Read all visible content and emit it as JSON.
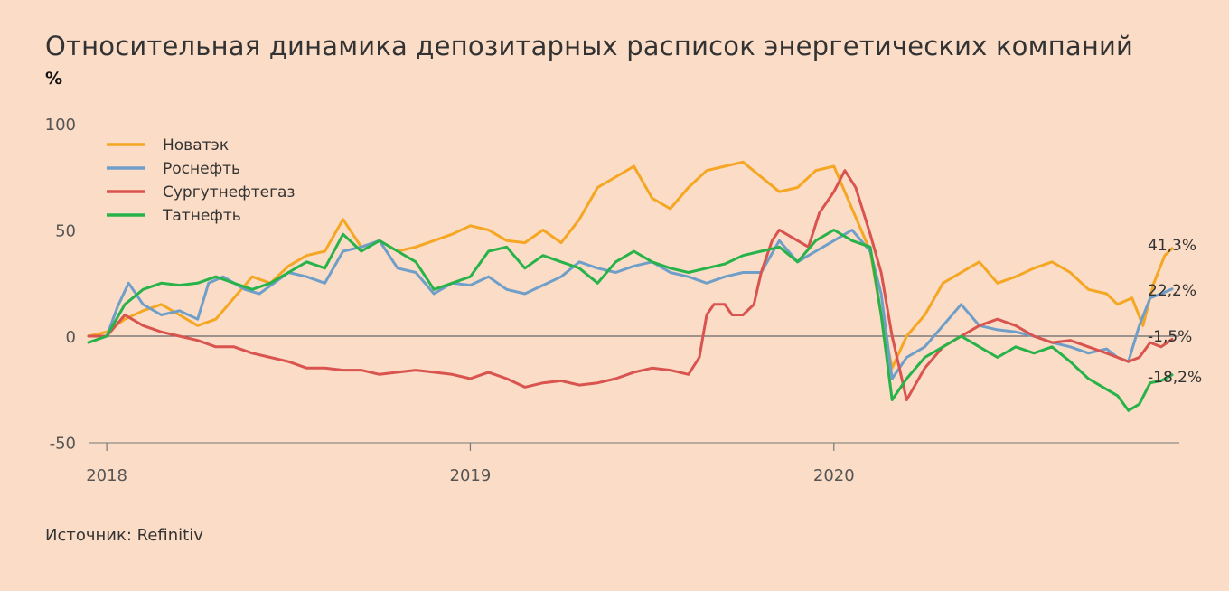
{
  "title": "Относительная динамика депозитарных расписок энергетических компаний",
  "unit": "%",
  "source": "Источник: Refinitiv",
  "chart_data": {
    "type": "line",
    "ylim": [
      -50,
      100
    ],
    "y_ticks": [
      100,
      50,
      0,
      -50
    ],
    "x_range": [
      2017.95,
      2020.95
    ],
    "x_ticks": [
      {
        "value": 2018.0,
        "label": "2018"
      },
      {
        "value": 2019.0,
        "label": "2019"
      },
      {
        "value": 2020.0,
        "label": "2020"
      }
    ],
    "legend_position": "top-left",
    "series": [
      {
        "name": "Новатэк",
        "color": "#f5a623",
        "end_label": "41,3%",
        "x": [
          2017.95,
          2018.0,
          2018.05,
          2018.1,
          2018.15,
          2018.2,
          2018.25,
          2018.3,
          2018.35,
          2018.4,
          2018.45,
          2018.5,
          2018.55,
          2018.6,
          2018.65,
          2018.7,
          2018.75,
          2018.8,
          2018.85,
          2018.9,
          2018.95,
          2019.0,
          2019.05,
          2019.1,
          2019.15,
          2019.2,
          2019.25,
          2019.3,
          2019.35,
          2019.4,
          2019.45,
          2019.5,
          2019.55,
          2019.6,
          2019.65,
          2019.7,
          2019.75,
          2019.8,
          2019.85,
          2019.9,
          2019.95,
          2020.0,
          2020.05,
          2020.1,
          2020.13,
          2020.16,
          2020.2,
          2020.25,
          2020.3,
          2020.35,
          2020.4,
          2020.45,
          2020.5,
          2020.55,
          2020.6,
          2020.65,
          2020.7,
          2020.75,
          2020.78,
          2020.82,
          2020.85,
          2020.88,
          2020.91,
          2020.93
        ],
        "y": [
          0,
          2,
          8,
          12,
          15,
          10,
          5,
          8,
          18,
          28,
          25,
          33,
          38,
          40,
          55,
          42,
          45,
          40,
          42,
          45,
          48,
          52,
          50,
          45,
          44,
          50,
          44,
          55,
          70,
          75,
          80,
          65,
          60,
          70,
          78,
          80,
          82,
          75,
          68,
          70,
          78,
          80,
          60,
          40,
          10,
          -15,
          0,
          10,
          25,
          30,
          35,
          25,
          28,
          32,
          35,
          30,
          22,
          20,
          15,
          18,
          5,
          25,
          38,
          41.3
        ]
      },
      {
        "name": "Роснефть",
        "color": "#6f9fc8",
        "end_label": "22,2%",
        "x": [
          2017.95,
          2018.0,
          2018.03,
          2018.06,
          2018.1,
          2018.15,
          2018.2,
          2018.25,
          2018.28,
          2018.32,
          2018.38,
          2018.42,
          2018.46,
          2018.5,
          2018.55,
          2018.6,
          2018.65,
          2018.7,
          2018.75,
          2018.8,
          2018.85,
          2018.9,
          2018.95,
          2019.0,
          2019.05,
          2019.1,
          2019.15,
          2019.2,
          2019.25,
          2019.3,
          2019.35,
          2019.4,
          2019.45,
          2019.5,
          2019.55,
          2019.6,
          2019.65,
          2019.7,
          2019.75,
          2019.8,
          2019.85,
          2019.9,
          2019.95,
          2020.0,
          2020.05,
          2020.1,
          2020.13,
          2020.16,
          2020.2,
          2020.25,
          2020.3,
          2020.35,
          2020.4,
          2020.45,
          2020.5,
          2020.55,
          2020.6,
          2020.65,
          2020.7,
          2020.75,
          2020.78,
          2020.81,
          2020.84,
          2020.87,
          2020.9,
          2020.93
        ],
        "y": [
          0,
          0,
          14,
          25,
          15,
          10,
          12,
          8,
          25,
          28,
          22,
          20,
          25,
          30,
          28,
          25,
          40,
          42,
          45,
          32,
          30,
          20,
          25,
          24,
          28,
          22,
          20,
          24,
          28,
          35,
          32,
          30,
          33,
          35,
          30,
          28,
          25,
          28,
          30,
          30,
          45,
          35,
          40,
          45,
          50,
          40,
          20,
          -20,
          -10,
          -5,
          5,
          15,
          5,
          3,
          2,
          0,
          -3,
          -5,
          -8,
          -6,
          -10,
          -12,
          5,
          18,
          20,
          22.2
        ]
      },
      {
        "name": "Сургутнефтегаз",
        "color": "#d9534f",
        "end_label": "-1,5%",
        "x": [
          2017.95,
          2018.0,
          2018.05,
          2018.1,
          2018.15,
          2018.2,
          2018.25,
          2018.3,
          2018.35,
          2018.4,
          2018.45,
          2018.5,
          2018.55,
          2018.6,
          2018.65,
          2018.7,
          2018.75,
          2018.8,
          2018.85,
          2018.9,
          2018.95,
          2019.0,
          2019.05,
          2019.1,
          2019.15,
          2019.2,
          2019.25,
          2019.3,
          2019.35,
          2019.4,
          2019.45,
          2019.5,
          2019.55,
          2019.6,
          2019.63,
          2019.65,
          2019.67,
          2019.7,
          2019.72,
          2019.75,
          2019.78,
          2019.8,
          2019.83,
          2019.85,
          2019.9,
          2019.93,
          2019.96,
          2020.0,
          2020.03,
          2020.06,
          2020.1,
          2020.13,
          2020.16,
          2020.2,
          2020.25,
          2020.3,
          2020.35,
          2020.4,
          2020.45,
          2020.5,
          2020.55,
          2020.6,
          2020.65,
          2020.7,
          2020.75,
          2020.78,
          2020.81,
          2020.84,
          2020.87,
          2020.9,
          2020.93
        ],
        "y": [
          0,
          0,
          10,
          5,
          2,
          0,
          -2,
          -5,
          -5,
          -8,
          -10,
          -12,
          -15,
          -15,
          -16,
          -16,
          -18,
          -17,
          -16,
          -17,
          -18,
          -20,
          -17,
          -20,
          -24,
          -22,
          -21,
          -23,
          -22,
          -20,
          -17,
          -15,
          -16,
          -18,
          -10,
          10,
          15,
          15,
          10,
          10,
          15,
          30,
          45,
          50,
          45,
          42,
          58,
          68,
          78,
          70,
          48,
          30,
          0,
          -30,
          -15,
          -5,
          0,
          5,
          8,
          5,
          0,
          -3,
          -2,
          -5,
          -8,
          -10,
          -12,
          -10,
          -3,
          -5,
          -1.5
        ]
      },
      {
        "name": "Татнефть",
        "color": "#27b34a",
        "end_label": "-18,2%",
        "x": [
          2017.95,
          2018.0,
          2018.05,
          2018.1,
          2018.15,
          2018.2,
          2018.25,
          2018.3,
          2018.35,
          2018.4,
          2018.45,
          2018.5,
          2018.55,
          2018.6,
          2018.65,
          2018.7,
          2018.75,
          2018.8,
          2018.85,
          2018.9,
          2018.95,
          2019.0,
          2019.05,
          2019.1,
          2019.15,
          2019.2,
          2019.25,
          2019.3,
          2019.35,
          2019.4,
          2019.45,
          2019.5,
          2019.55,
          2019.6,
          2019.65,
          2019.7,
          2019.75,
          2019.8,
          2019.85,
          2019.9,
          2019.95,
          2020.0,
          2020.05,
          2020.1,
          2020.13,
          2020.16,
          2020.2,
          2020.25,
          2020.3,
          2020.35,
          2020.4,
          2020.45,
          2020.5,
          2020.55,
          2020.6,
          2020.65,
          2020.7,
          2020.75,
          2020.78,
          2020.81,
          2020.84,
          2020.87,
          2020.9,
          2020.93
        ],
        "y": [
          -3,
          0,
          15,
          22,
          25,
          24,
          25,
          28,
          25,
          22,
          25,
          30,
          35,
          32,
          48,
          40,
          45,
          40,
          35,
          22,
          25,
          28,
          40,
          42,
          32,
          38,
          35,
          32,
          25,
          35,
          40,
          35,
          32,
          30,
          32,
          34,
          38,
          40,
          42,
          35,
          45,
          50,
          45,
          42,
          10,
          -30,
          -20,
          -10,
          -5,
          0,
          -5,
          -10,
          -5,
          -8,
          -5,
          -12,
          -20,
          -25,
          -28,
          -35,
          -32,
          -22,
          -21,
          -18.2
        ]
      }
    ]
  }
}
